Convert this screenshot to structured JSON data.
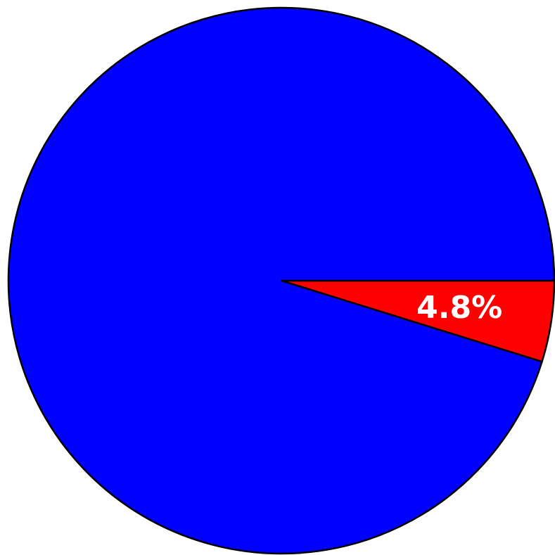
{
  "chart_data": {
    "type": "pie",
    "slices": [
      {
        "value": 4.8,
        "label": "4.8%",
        "color": "#ff0000"
      },
      {
        "value": 95.2,
        "label": "",
        "color": "#0000ff"
      }
    ],
    "start_angle_deg": 0,
    "direction": "clockwise",
    "title": "",
    "legend": "none"
  }
}
